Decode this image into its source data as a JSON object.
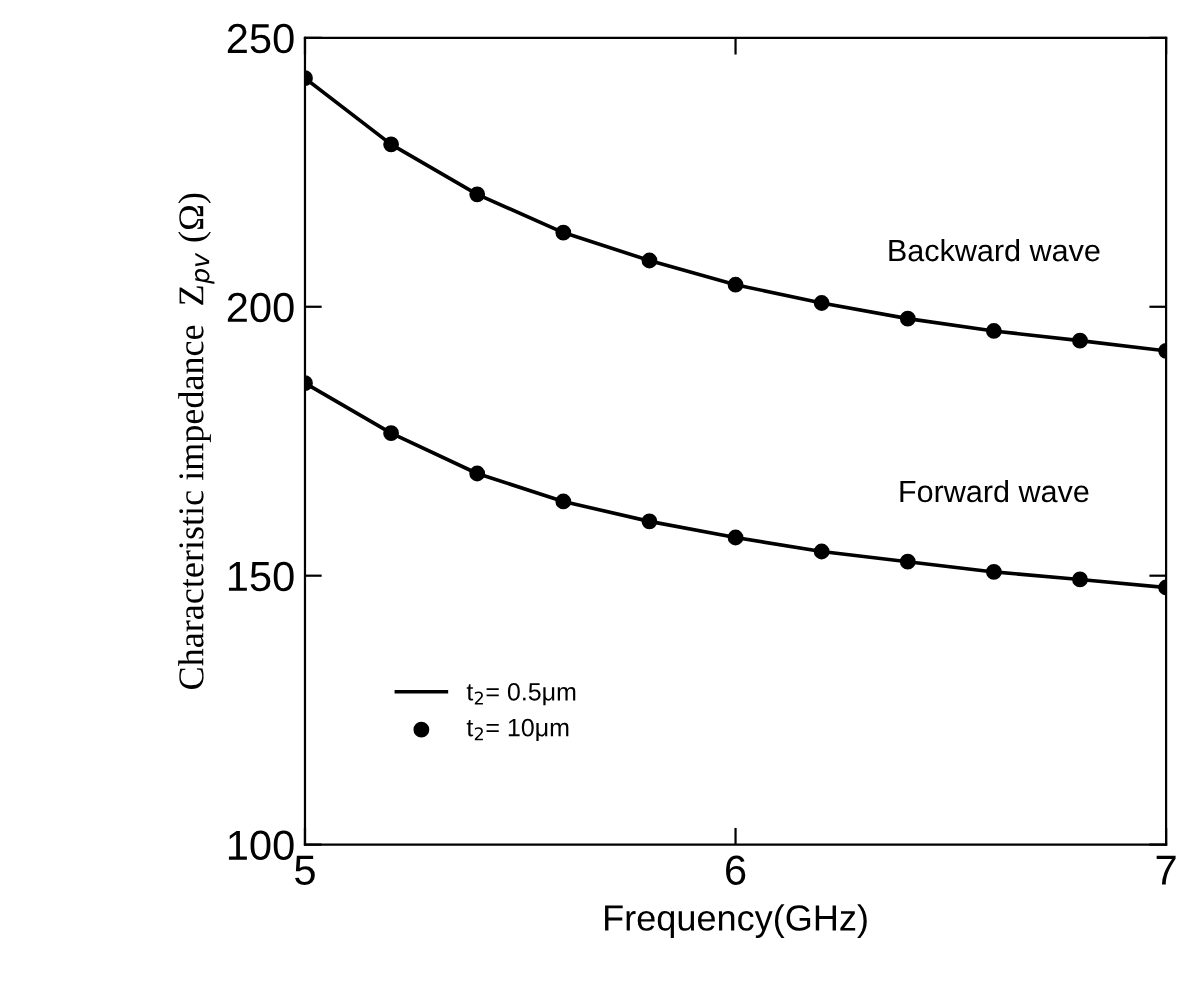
{
  "chart_data": {
    "type": "line",
    "xlabel": "Frequency(GHz)",
    "ylabel": "Characteristic impedance  Z$_{pv}$ (Ω)",
    "x": [
      5,
      5.2,
      5.4,
      5.6,
      5.8,
      6,
      6.2,
      6.4,
      6.6,
      6.8,
      7
    ],
    "series": [
      {
        "name": "t$_{2}$= 0.5μm",
        "marker": "none",
        "color": "#000000",
        "values": [
          242.5,
          230.2,
          220.9,
          213.8,
          208.6,
          204.1,
          200.7,
          197.8,
          195.5,
          193.7,
          191.8
        ]
      },
      {
        "marker": "none",
        "color": "#000000",
        "values": [
          185.8,
          176.5,
          169.0,
          163.8,
          160.1,
          157.1,
          154.5,
          152.6,
          150.7,
          149.3,
          147.8
        ]
      },
      {
        "name": "t$_{2}$= 10μm",
        "type": "scatter",
        "marker": "circle",
        "color": "#000000",
        "values": [
          242.5,
          230.2,
          220.9,
          213.8,
          208.6,
          204.1,
          200.7,
          197.8,
          195.5,
          193.7,
          191.8
        ]
      },
      {
        "type": "scatter",
        "marker": "circle",
        "color": "#000000",
        "values": [
          185.8,
          176.5,
          169.0,
          163.8,
          160.1,
          157.1,
          154.5,
          152.6,
          150.7,
          149.3,
          147.8
        ]
      }
    ],
    "xlim": [
      5,
      7
    ],
    "xticks": [
      5,
      6,
      7
    ],
    "ylim": [
      100,
      250
    ],
    "yticks": [
      100,
      150,
      200,
      250
    ],
    "annotations": [
      "Backward wave",
      "Forward wave"
    ],
    "legend": "bottom left",
    "grid": false
  }
}
